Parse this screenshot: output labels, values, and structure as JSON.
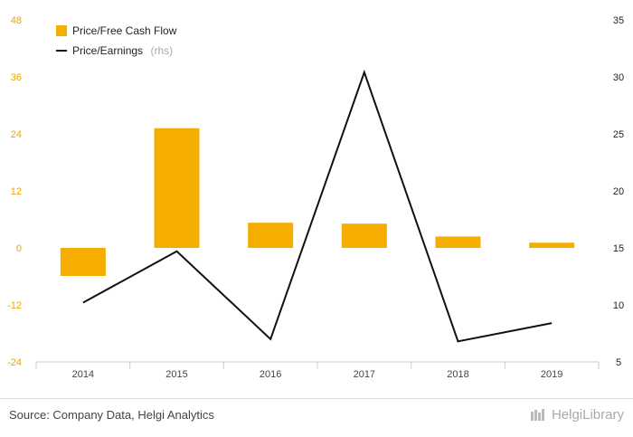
{
  "chart_data": {
    "type": "bar",
    "categories": [
      "2014",
      "2015",
      "2016",
      "2017",
      "2018",
      "2019"
    ],
    "series": [
      {
        "name": "Price/Free Cash Flow",
        "chart_type": "bar",
        "axis": "left",
        "values": [
          -5.9,
          25.2,
          5.3,
          5.1,
          2.4,
          1.1
        ]
      },
      {
        "name": "Price/Earnings",
        "chart_type": "line",
        "axis": "right",
        "values": [
          10.2,
          14.7,
          7.0,
          30.4,
          6.8,
          8.4
        ]
      }
    ],
    "left_axis": {
      "min": -24,
      "max": 48,
      "ticks": [
        -24,
        -12,
        0,
        12,
        24,
        36,
        48
      ]
    },
    "right_axis": {
      "min": 5,
      "max": 35,
      "ticks": [
        5,
        10,
        15,
        20,
        25,
        30,
        35
      ]
    },
    "legend": {
      "position": "top-left",
      "rhs_tag": "(rhs)"
    },
    "colors": {
      "bar": "#f5ad00",
      "line": "#111111",
      "left_ticks": "#f0a500"
    },
    "grid": false
  },
  "footer": {
    "source": "Source: Company Data, Helgi Analytics",
    "brand": "HelgiLibrary"
  }
}
